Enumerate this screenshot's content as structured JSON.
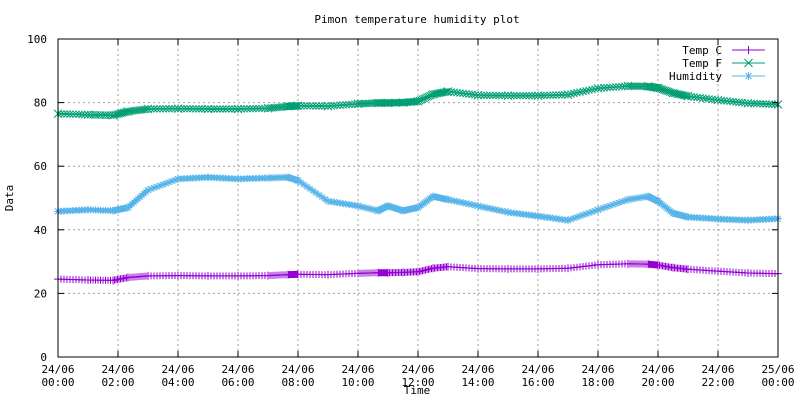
{
  "chart_data": {
    "type": "line",
    "title": "Pimon temperature   humidity plot",
    "xlabel": "Time",
    "ylabel": "Data",
    "xlim": [
      "24/06 00:00",
      "25/06 00:00"
    ],
    "ylim": [
      0,
      100
    ],
    "yticks": [
      0,
      20,
      40,
      60,
      80,
      100
    ],
    "xticks": [
      {
        "date": "24/06",
        "time": "00:00"
      },
      {
        "date": "24/06",
        "time": "02:00"
      },
      {
        "date": "24/06",
        "time": "04:00"
      },
      {
        "date": "24/06",
        "time": "06:00"
      },
      {
        "date": "24/06",
        "time": "08:00"
      },
      {
        "date": "24/06",
        "time": "10:00"
      },
      {
        "date": "24/06",
        "time": "12:00"
      },
      {
        "date": "24/06",
        "time": "14:00"
      },
      {
        "date": "24/06",
        "time": "16:00"
      },
      {
        "date": "24/06",
        "time": "18:00"
      },
      {
        "date": "24/06",
        "time": "20:00"
      },
      {
        "date": "24/06",
        "time": "22:00"
      },
      {
        "date": "25/06",
        "time": "00:00"
      }
    ],
    "grid": true,
    "legend_position": "top-right",
    "x": [
      "24/06 00:00",
      "24/06 01:00",
      "24/06 01:50",
      "24/06 02:20",
      "24/06 03:00",
      "24/06 04:00",
      "24/06 05:00",
      "24/06 06:00",
      "24/06 07:00",
      "24/06 07:40",
      "24/06 08:00",
      "24/06 09:00",
      "24/06 10:00",
      "24/06 10:40",
      "24/06 11:00",
      "24/06 11:30",
      "24/06 12:00",
      "24/06 12:30",
      "24/06 13:00",
      "24/06 14:00",
      "24/06 15:00",
      "24/06 16:00",
      "24/06 17:00",
      "24/06 18:00",
      "24/06 19:00",
      "24/06 19:40",
      "24/06 20:00",
      "24/06 20:30",
      "24/06 21:00",
      "24/06 22:00",
      "24/06 23:00",
      "25/06 00:00"
    ],
    "series": [
      {
        "name": "Temp C",
        "color": "#9400d3",
        "marker": "plus",
        "values": [
          24.5,
          24.2,
          24.1,
          25.0,
          25.5,
          25.6,
          25.5,
          25.5,
          25.6,
          25.9,
          26.0,
          25.9,
          26.3,
          26.5,
          26.5,
          26.6,
          26.8,
          27.9,
          28.4,
          27.8,
          27.7,
          27.7,
          27.9,
          29.0,
          29.3,
          29.2,
          28.9,
          28.1,
          27.6,
          27.0,
          26.4,
          26.2
        ]
      },
      {
        "name": "Temp F",
        "color": "#009e73",
        "marker": "cross",
        "values": [
          76.5,
          76.2,
          76.0,
          77.2,
          78.0,
          78.1,
          78.0,
          78.0,
          78.2,
          78.8,
          79.0,
          78.9,
          79.6,
          79.9,
          79.9,
          80.0,
          80.4,
          82.6,
          83.5,
          82.3,
          82.2,
          82.2,
          82.5,
          84.5,
          85.2,
          85.1,
          84.6,
          83.0,
          82.0,
          80.8,
          79.8,
          79.4
        ]
      },
      {
        "name": "Humidity",
        "color": "#56b4e9",
        "marker": "star",
        "values": [
          45.8,
          46.3,
          46.0,
          47.0,
          52.5,
          56.0,
          56.5,
          56.0,
          56.3,
          56.5,
          55.5,
          49.0,
          47.5,
          46.0,
          47.5,
          46.0,
          47.0,
          50.5,
          49.5,
          47.5,
          45.5,
          44.3,
          43.0,
          46.3,
          49.5,
          50.5,
          49.0,
          45.2,
          44.0,
          43.4,
          43.0,
          43.5
        ]
      }
    ]
  }
}
